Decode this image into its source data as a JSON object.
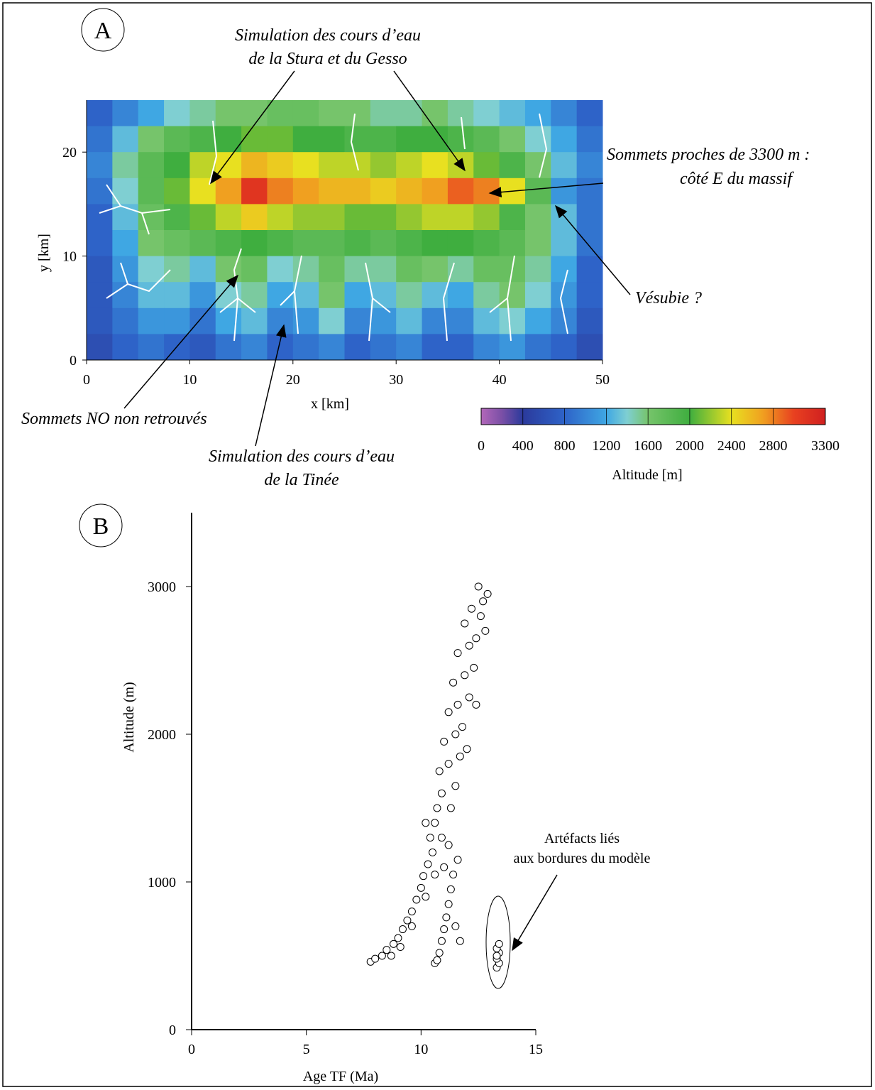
{
  "chart_data": [
    {
      "type": "heatmap",
      "panel_label": "A",
      "xlabel": "x [km]",
      "ylabel": "y [km]",
      "xlim": [
        0,
        50
      ],
      "ylim": [
        0,
        25
      ],
      "xticks": [
        0,
        10,
        20,
        30,
        40,
        50
      ],
      "yticks": [
        0,
        10,
        20
      ],
      "z": [
        [
          800,
          1000,
          1200,
          1400,
          1500,
          1600,
          1600,
          1700,
          1700,
          1600,
          1600,
          1500,
          1500,
          1600,
          1500,
          1400,
          1300,
          1200,
          1000,
          800
        ],
        [
          900,
          1300,
          1600,
          1800,
          1900,
          2000,
          2100,
          2100,
          2000,
          2000,
          1900,
          1900,
          2000,
          2000,
          1900,
          1800,
          1600,
          1400,
          1200,
          900
        ],
        [
          1000,
          1500,
          1800,
          2000,
          2300,
          2400,
          2600,
          2500,
          2400,
          2300,
          2300,
          2200,
          2300,
          2400,
          2300,
          2100,
          1900,
          1600,
          1300,
          1000
        ],
        [
          900,
          1400,
          1800,
          2100,
          2400,
          2700,
          3100,
          2800,
          2700,
          2600,
          2600,
          2500,
          2600,
          2700,
          2900,
          2800,
          2400,
          1800,
          1100,
          900
        ],
        [
          800,
          1300,
          1700,
          1900,
          2100,
          2300,
          2500,
          2300,
          2200,
          2200,
          2100,
          2100,
          2200,
          2300,
          2300,
          2200,
          1900,
          1600,
          1300,
          900
        ],
        [
          800,
          1200,
          1600,
          1700,
          1800,
          1900,
          2000,
          1900,
          1800,
          1800,
          1900,
          1800,
          1900,
          2000,
          2000,
          1900,
          1800,
          1600,
          1300,
          900
        ],
        [
          700,
          1100,
          1400,
          1500,
          1300,
          1600,
          1700,
          1400,
          1500,
          1700,
          1500,
          1500,
          1700,
          1600,
          1500,
          1700,
          1700,
          1500,
          1200,
          800
        ],
        [
          700,
          1000,
          1300,
          1300,
          1100,
          1400,
          1500,
          1200,
          1300,
          1600,
          1200,
          1300,
          1500,
          1300,
          1200,
          1500,
          1600,
          1400,
          1100,
          800
        ],
        [
          700,
          900,
          1100,
          1100,
          900,
          1200,
          1300,
          1000,
          1100,
          1400,
          1000,
          1100,
          1300,
          1000,
          1000,
          1300,
          1400,
          1200,
          1000,
          700
        ],
        [
          600,
          800,
          900,
          800,
          700,
          900,
          1000,
          800,
          900,
          1000,
          800,
          900,
          1000,
          800,
          800,
          1000,
          1100,
          900,
          800,
          600
        ]
      ],
      "colorscale": {
        "values": [
          0,
          200,
          400,
          800,
          1200,
          1400,
          1600,
          2000,
          2400,
          2700,
          3000,
          3300
        ],
        "colors": [
          "#b267b9",
          "#7a4fa6",
          "#2b3a9c",
          "#2e63c8",
          "#3fa7e3",
          "#7fcfd2",
          "#76c46b",
          "#3fae3f",
          "#e8e020",
          "#f0a020",
          "#e84020",
          "#d02020"
        ]
      },
      "colorbar": {
        "label": "Altitude [m]",
        "lim": [
          0,
          3300
        ],
        "ticks": [
          0,
          400,
          800,
          1200,
          1600,
          2000,
          2400,
          2800,
          3300
        ]
      },
      "annotations": [
        {
          "lines": [
            "Simulation des cours d’eau",
            "de la Stura et du Gesso"
          ]
        },
        {
          "lines": [
            "Sommets proches de 3300 m :",
            "côté E du massif"
          ]
        },
        {
          "lines": [
            "Vésubie ?"
          ]
        },
        {
          "lines": [
            "Sommets NO non retrouvés"
          ]
        },
        {
          "lines": [
            "Simulation des cours d’eau",
            "de la Tinée"
          ]
        }
      ]
    },
    {
      "type": "scatter",
      "panel_label": "B",
      "xlabel": "Age TF (Ma)",
      "ylabel": "Altitude (m)",
      "xlim": [
        0,
        15
      ],
      "ylim": [
        0,
        3500
      ],
      "xticks": [
        0,
        5,
        10,
        15
      ],
      "yticks": [
        0,
        1000,
        2000,
        3000
      ],
      "marker_color": "#ffffff",
      "x": [
        7.8,
        8.0,
        8.3,
        8.5,
        8.8,
        9.0,
        9.2,
        9.4,
        9.6,
        9.8,
        10.0,
        10.1,
        10.3,
        10.5,
        10.4,
        10.6,
        10.9,
        11.2,
        10.7,
        11.3,
        10.9,
        11.5,
        10.8,
        11.2,
        11.7,
        11.0,
        11.5,
        11.8,
        11.2,
        11.6,
        12.1,
        11.4,
        11.9,
        12.3,
        11.6,
        12.1,
        12.4,
        11.9,
        12.6,
        12.2,
        12.7,
        12.5,
        12.9,
        12.8,
        9.1,
        8.7,
        9.6,
        10.2,
        10.6,
        12.0,
        12.4,
        10.2,
        11.0,
        10.6,
        10.7,
        10.8,
        10.9,
        11.0,
        11.1,
        11.2,
        11.3,
        11.4,
        11.6,
        11.5,
        11.7,
        13.3,
        13.4,
        13.3,
        13.4,
        13.3,
        13.4,
        13.3
      ],
      "y": [
        460,
        480,
        500,
        540,
        580,
        620,
        680,
        740,
        800,
        880,
        960,
        1040,
        1120,
        1200,
        1300,
        1400,
        1300,
        1250,
        1500,
        1500,
        1600,
        1650,
        1750,
        1800,
        1850,
        1950,
        2000,
        2050,
        2150,
        2200,
        2250,
        2350,
        2400,
        2450,
        2550,
        2600,
        2650,
        2750,
        2800,
        2850,
        2900,
        3000,
        2950,
        2700,
        560,
        500,
        700,
        900,
        1050,
        1900,
        2200,
        1400,
        1100,
        450,
        470,
        520,
        600,
        680,
        760,
        850,
        950,
        1050,
        1150,
        700,
        600,
        420,
        450,
        480,
        520,
        550,
        580,
        500
      ],
      "annotations": [
        {
          "lines": [
            "Artéfacts liés",
            "aux bordures du modèle"
          ]
        }
      ]
    }
  ]
}
